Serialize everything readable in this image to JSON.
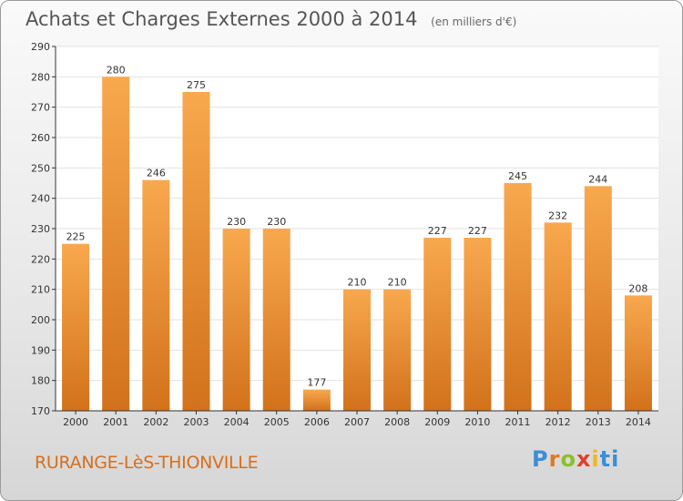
{
  "title": "Achats et Charges Externes 2000 à 2014",
  "subtitle": "(en milliers d'€)",
  "location": "RURANGE-LèS-THIONVILLE",
  "logo_text": [
    "P",
    "r",
    "o",
    "x",
    "i",
    "ti"
  ],
  "colors": {
    "bar_top": "#f8a84e",
    "bar_bottom": "#d2721b",
    "grid": "#e2e2e2",
    "axis": "#333333",
    "text": "#333333"
  },
  "chart_data": {
    "type": "bar",
    "categories": [
      "2000",
      "2001",
      "2002",
      "2003",
      "2004",
      "2005",
      "2006",
      "2007",
      "2008",
      "2009",
      "2010",
      "2011",
      "2012",
      "2013",
      "2014"
    ],
    "values": [
      225,
      280,
      246,
      275,
      230,
      230,
      177,
      210,
      210,
      227,
      227,
      245,
      232,
      244,
      208
    ],
    "ylim": [
      170,
      290
    ],
    "yticks": [
      170,
      180,
      190,
      200,
      210,
      220,
      230,
      240,
      250,
      260,
      270,
      280,
      290
    ],
    "grid": true
  }
}
